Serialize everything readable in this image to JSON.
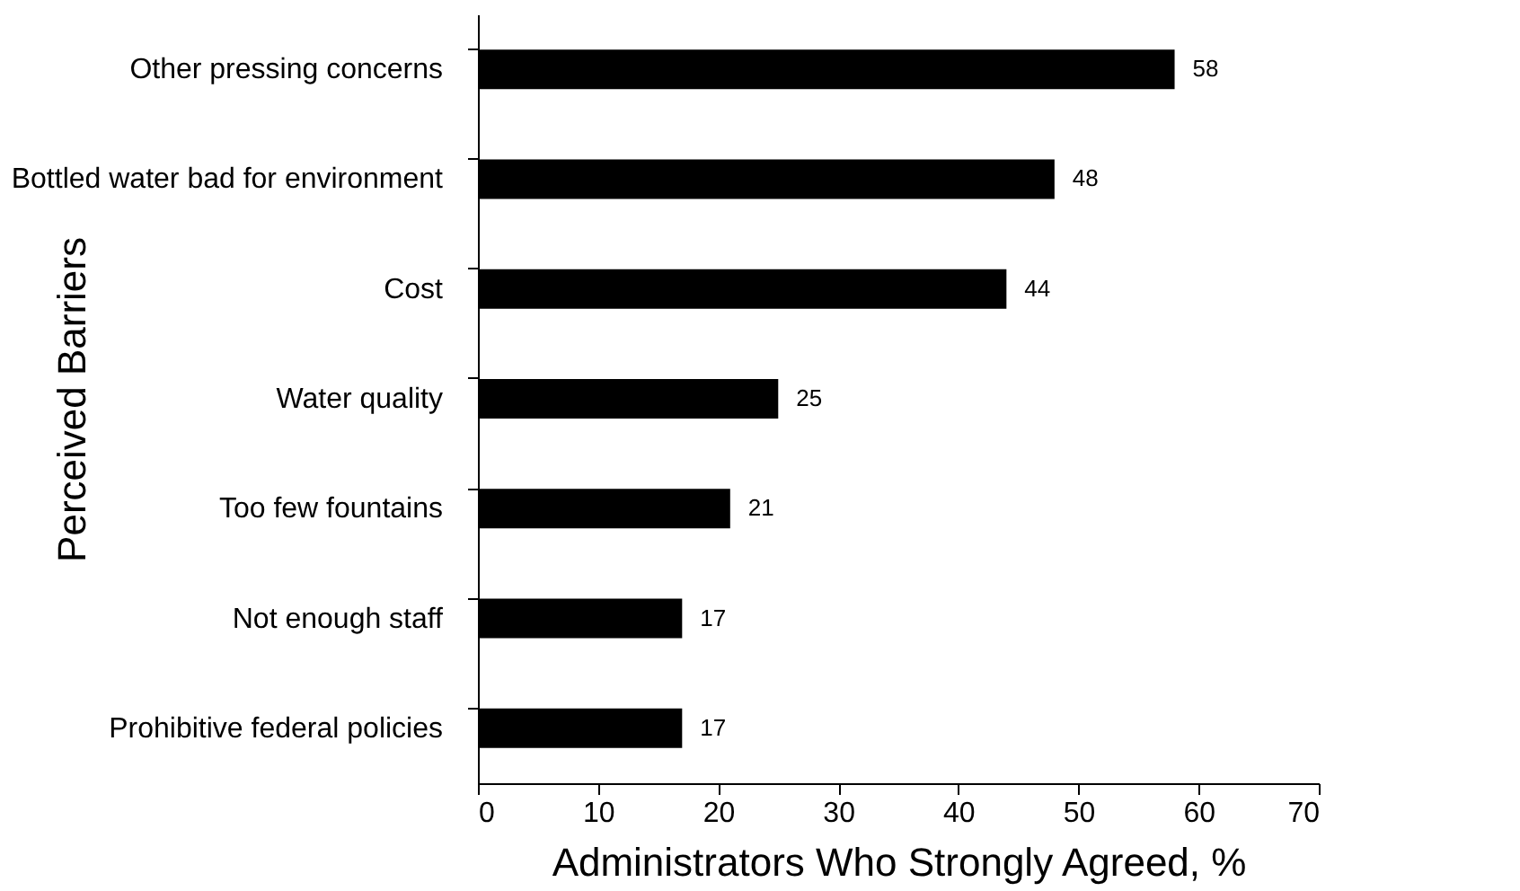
{
  "chart_data": {
    "type": "bar",
    "orientation": "horizontal",
    "xlabel": "Administrators Who Strongly Agreed, %",
    "ylabel": "Perceived Barriers",
    "categories": [
      "Other pressing concerns",
      "Bottled water bad for environment",
      "Cost",
      "Water quality",
      "Too few fountains",
      "Not enough staff",
      "Prohibitive federal policies"
    ],
    "values": [
      58,
      48,
      44,
      25,
      21,
      17,
      17
    ],
    "color": "#000000",
    "xlim": [
      0,
      70
    ],
    "xticks": [
      0,
      10,
      20,
      30,
      40,
      50,
      60,
      70
    ],
    "grid": false,
    "data_labels": true
  }
}
